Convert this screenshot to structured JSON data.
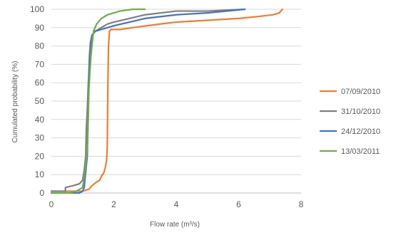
{
  "chart_data": {
    "type": "line",
    "title": "",
    "xlabel": "Flow rate (m³/s)",
    "ylabel": "Cumulated probability (%)",
    "xlim": [
      0,
      8
    ],
    "ylim": [
      0,
      100
    ],
    "x_ticks": [
      "0",
      "2",
      "4",
      "6",
      "8"
    ],
    "y_ticks": [
      "0",
      "10",
      "20",
      "30",
      "40",
      "50",
      "60",
      "70",
      "80",
      "90",
      "100"
    ],
    "grid": "horizontal",
    "legend_position": "right",
    "series": [
      {
        "name": "07/09/2010",
        "color": "#ED7D31",
        "points": [
          [
            0,
            1
          ],
          [
            1.0,
            1
          ],
          [
            1.2,
            2
          ],
          [
            1.3,
            4
          ],
          [
            1.45,
            6
          ],
          [
            1.55,
            7
          ],
          [
            1.6,
            9
          ],
          [
            1.68,
            11
          ],
          [
            1.73,
            14
          ],
          [
            1.77,
            18
          ],
          [
            1.79,
            25
          ],
          [
            1.8,
            40
          ],
          [
            1.81,
            60
          ],
          [
            1.83,
            80
          ],
          [
            1.86,
            88
          ],
          [
            1.9,
            89
          ],
          [
            2.2,
            89
          ],
          [
            2.6,
            90
          ],
          [
            3.5,
            92
          ],
          [
            4.0,
            93
          ],
          [
            5.0,
            94
          ],
          [
            6.0,
            95
          ],
          [
            6.6,
            96
          ],
          [
            7.1,
            97
          ],
          [
            7.3,
            98
          ],
          [
            7.4,
            100
          ]
        ]
      },
      {
        "name": "31/10/2010",
        "color": "#7F7F7F",
        "points": [
          [
            0,
            1
          ],
          [
            0.45,
            1
          ],
          [
            0.45,
            3
          ],
          [
            0.7,
            4
          ],
          [
            0.9,
            5
          ],
          [
            1.0,
            7
          ],
          [
            1.05,
            12
          ],
          [
            1.1,
            20
          ],
          [
            1.12,
            35
          ],
          [
            1.15,
            45
          ],
          [
            1.18,
            58
          ],
          [
            1.2,
            65
          ],
          [
            1.22,
            75
          ],
          [
            1.25,
            82
          ],
          [
            1.3,
            86
          ],
          [
            1.4,
            88
          ],
          [
            1.6,
            90
          ],
          [
            1.8,
            92
          ],
          [
            2.0,
            93
          ],
          [
            2.5,
            95
          ],
          [
            3.0,
            97
          ],
          [
            4.0,
            99
          ],
          [
            5.0,
            99
          ],
          [
            6.2,
            100
          ]
        ]
      },
      {
        "name": "24/12/2010",
        "color": "#4472C4",
        "points": [
          [
            0,
            0
          ],
          [
            0.9,
            0
          ],
          [
            1.0,
            1
          ],
          [
            1.05,
            3
          ],
          [
            1.08,
            8
          ],
          [
            1.12,
            15
          ],
          [
            1.15,
            20
          ],
          [
            1.17,
            35
          ],
          [
            1.19,
            50
          ],
          [
            1.2,
            60
          ],
          [
            1.22,
            70
          ],
          [
            1.25,
            75
          ],
          [
            1.28,
            82
          ],
          [
            1.32,
            86
          ],
          [
            1.4,
            88
          ],
          [
            1.6,
            89
          ],
          [
            1.8,
            90
          ],
          [
            2.0,
            91
          ],
          [
            2.5,
            93
          ],
          [
            3.0,
            95
          ],
          [
            4.0,
            97
          ],
          [
            5.0,
            98
          ],
          [
            6.2,
            100
          ]
        ]
      },
      {
        "name": "13/03/2011",
        "color": "#70AD47",
        "points": [
          [
            0,
            0
          ],
          [
            0.6,
            0
          ],
          [
            0.8,
            1
          ],
          [
            0.9,
            2
          ],
          [
            1.0,
            3
          ],
          [
            1.05,
            8
          ],
          [
            1.1,
            15
          ],
          [
            1.15,
            25
          ],
          [
            1.18,
            40
          ],
          [
            1.2,
            55
          ],
          [
            1.23,
            65
          ],
          [
            1.27,
            75
          ],
          [
            1.3,
            80
          ],
          [
            1.35,
            88
          ],
          [
            1.45,
            92
          ],
          [
            1.6,
            95
          ],
          [
            1.8,
            97
          ],
          [
            2.0,
            98
          ],
          [
            2.2,
            99
          ],
          [
            2.6,
            100
          ],
          [
            3.0,
            100
          ]
        ]
      }
    ]
  }
}
